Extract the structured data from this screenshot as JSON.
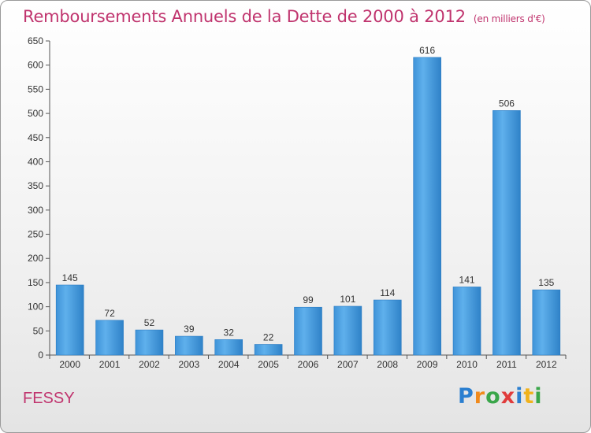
{
  "header": {
    "title": "Remboursements Annuels de la Dette de 2000 à 2012",
    "subtitle": "(en milliers d'€)"
  },
  "footer": {
    "location": "FESSY",
    "brand_letters": [
      "P",
      "r",
      "o",
      "x",
      "i",
      "t",
      "i"
    ],
    "brand_colors": [
      "#2a7fd0",
      "#f08a1c",
      "#3aa64a",
      "#e03c3c",
      "#2a7fd0",
      "#f0b21c",
      "#3aa64a"
    ]
  },
  "colors": {
    "bar": "#4a9fe0",
    "bar_dark": "#2b7cc4",
    "text": "#c0346e"
  },
  "chart_data": {
    "type": "bar",
    "title": "Remboursements Annuels de la Dette de 2000 à 2012",
    "subtitle": "(en milliers d'€)",
    "categories": [
      "2000",
      "2001",
      "2002",
      "2003",
      "2004",
      "2005",
      "2006",
      "2007",
      "2008",
      "2009",
      "2010",
      "2011",
      "2012"
    ],
    "values": [
      145,
      72,
      52,
      39,
      32,
      22,
      99,
      101,
      114,
      616,
      141,
      506,
      135
    ],
    "xlabel": "",
    "ylabel": "",
    "ylim": [
      0,
      650
    ],
    "yticks": [
      0,
      50,
      100,
      150,
      200,
      250,
      300,
      350,
      400,
      450,
      500,
      550,
      600,
      650
    ],
    "grid": false,
    "legend": "none"
  }
}
